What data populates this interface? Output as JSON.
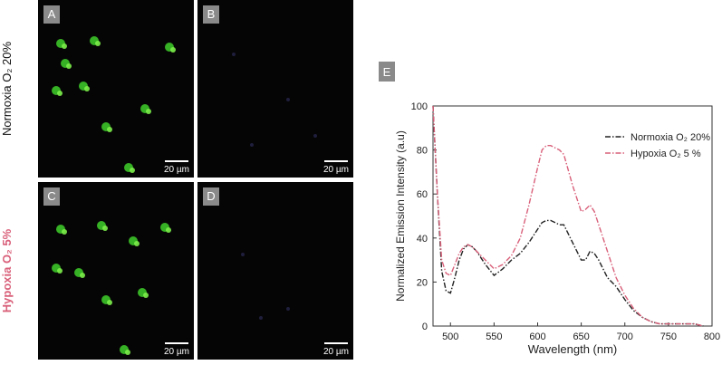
{
  "panels": [
    {
      "label": "A",
      "scale": "20 µm"
    },
    {
      "label": "B",
      "scale": "20 µm"
    },
    {
      "label": "C",
      "scale": "20 µm"
    },
    {
      "label": "D",
      "scale": "20 µm"
    }
  ],
  "row_labels": [
    "Normoxia O₂ 20%",
    "Hypoxia O₂ 5%"
  ],
  "chart_data": {
    "type": "line",
    "panel_label": "E",
    "xlabel": "Wavelength (nm)",
    "ylabel": "Normalized Emission Intensity (a.u)",
    "x": [
      480,
      485,
      490,
      495,
      500,
      505,
      510,
      515,
      520,
      525,
      530,
      540,
      550,
      560,
      570,
      580,
      590,
      600,
      605,
      610,
      615,
      620,
      625,
      630,
      640,
      650,
      655,
      660,
      665,
      670,
      680,
      690,
      700,
      710,
      720,
      730,
      740,
      750,
      760,
      770,
      780,
      790
    ],
    "series": [
      {
        "name": "Normoxia O₂ 20%",
        "color": "#222222",
        "values": [
          100,
          60,
          25,
          16,
          15,
          22,
          30,
          35,
          37,
          36,
          34,
          28,
          23,
          26,
          30,
          33,
          38,
          44,
          47,
          48,
          48,
          47,
          46,
          46,
          38,
          30,
          30,
          34,
          33,
          30,
          22,
          18,
          12,
          7,
          4,
          2,
          1,
          1,
          1,
          1,
          1,
          0
        ]
      },
      {
        "name": "Hypoxia O₂ 5 %",
        "color": "#d9607a",
        "values": [
          100,
          60,
          30,
          24,
          23,
          28,
          33,
          36,
          37,
          36,
          34,
          30,
          26,
          28,
          32,
          40,
          55,
          72,
          80,
          82,
          82,
          81,
          80,
          78,
          64,
          52,
          53,
          55,
          52,
          46,
          34,
          22,
          14,
          8,
          4,
          2,
          1,
          1,
          1,
          1,
          1,
          0
        ]
      }
    ],
    "xlim": [
      480,
      800
    ],
    "xticks": [
      500,
      550,
      600,
      650,
      700,
      750,
      800
    ],
    "ylim": [
      0,
      100
    ],
    "yticks": [
      0,
      20,
      40,
      60,
      80,
      100
    ],
    "legend": "upper right"
  }
}
